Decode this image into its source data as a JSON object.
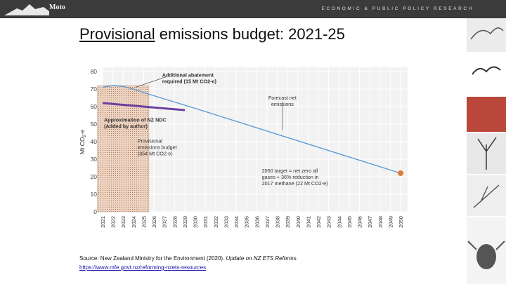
{
  "header": {
    "logo_text": "Moto",
    "tagline": "ECONOMIC & PUBLIC POLICY RESEARCH"
  },
  "slide": {
    "title_underlined": "Provisional",
    "title_rest": " emissions budget: 2021-25",
    "source_prefix": "Source: New Zealand Ministry for the Environment (2020). ",
    "source_title": "Update on NZ ETS Reforms.",
    "source_link": "https://www.mfe.govt.nz/reforming-nzets-resources"
  },
  "colors": {
    "line": "#5b9bd5",
    "ndc": "#6a3fa0",
    "budget_fill": "#e8cbb8",
    "target_dot": "#e07b39"
  },
  "chart_data": {
    "type": "line",
    "title": "Provisional emissions budget: 2021-25",
    "ylabel": "Mt CO2-e",
    "ylim": [
      0,
      80
    ],
    "yticks": [
      0,
      10,
      20,
      30,
      40,
      50,
      60,
      70,
      80
    ],
    "x": [
      2021,
      2022,
      2023,
      2024,
      2025,
      2026,
      2027,
      2028,
      2029,
      2030,
      2031,
      2032,
      2033,
      2034,
      2035,
      2036,
      2037,
      2038,
      2039,
      2040,
      2041,
      2042,
      2043,
      2044,
      2045,
      2046,
      2047,
      2048,
      2049,
      2050
    ],
    "series": [
      {
        "name": "Forecast net emissions",
        "points": [
          [
            2021,
            71
          ],
          [
            2022,
            72
          ],
          [
            2023,
            71.5
          ],
          [
            2024,
            70
          ],
          [
            2025,
            68
          ],
          [
            2030,
            59
          ],
          [
            2050,
            22
          ]
        ]
      },
      {
        "name": "Approximation of NZ NDC (Added by author)",
        "points": [
          [
            2021,
            62
          ],
          [
            2029,
            58
          ]
        ]
      }
    ],
    "budget_band": {
      "from": 2021,
      "to": 2025,
      "label": "Provisional emissions budget (354 Mt CO2-e)"
    },
    "target_point": {
      "x": 2050,
      "y": 22
    },
    "annotations": {
      "abatement": [
        "Additional abatement",
        "required (15 Mt CO2-e)"
      ],
      "forecast": [
        "Forecast net",
        "emissions"
      ],
      "ndc": [
        "Approximation of NZ NDC",
        "(Added by author)"
      ],
      "budget": [
        "Provisional",
        "emissions budget",
        "(354 Mt CO2-e)"
      ],
      "target": [
        "2050 target = net zero all",
        "gases + 36% reduction in",
        "2017 methane (22 Mt CO2-e)"
      ]
    }
  }
}
